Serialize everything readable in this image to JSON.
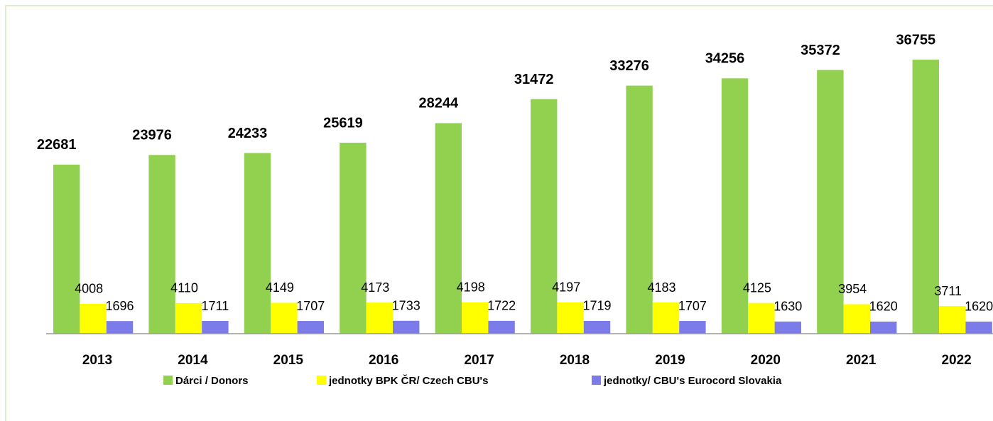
{
  "chart_data": {
    "type": "bar",
    "categories": [
      "2013",
      "2014",
      "2015",
      "2016",
      "2017",
      "2018",
      "2019",
      "2020",
      "2021",
      "2022"
    ],
    "series": [
      {
        "name": "Dárci / Donors",
        "color": "#92d050",
        "values": [
          22681,
          23976,
          24233,
          25619,
          28244,
          31472,
          33276,
          34256,
          35372,
          36755
        ]
      },
      {
        "name": "jednotky BPK ČR/  Czech CBU's",
        "color": "#ffff00",
        "values": [
          4008,
          4110,
          4149,
          4173,
          4198,
          4197,
          4183,
          4125,
          3954,
          3711
        ]
      },
      {
        "name": "jednotky/ CBU's Eurocord Slovakia",
        "color": "#7b7bea",
        "values": [
          1696,
          1711,
          1707,
          1733,
          1722,
          1719,
          1707,
          1630,
          1620,
          1620
        ]
      }
    ],
    "ylim": [
      0,
      40000
    ]
  }
}
